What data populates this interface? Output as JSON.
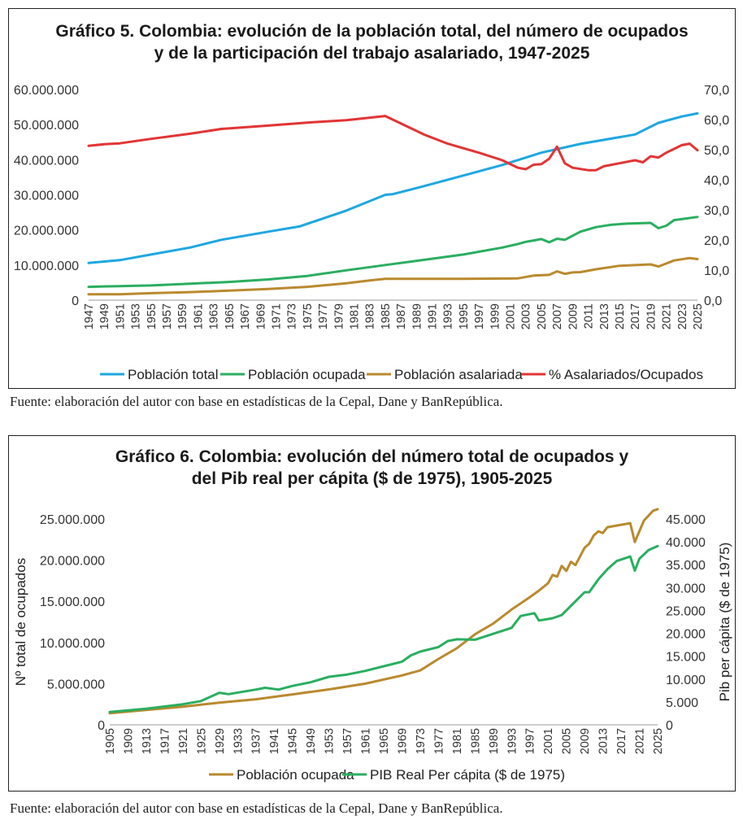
{
  "chart_data": [
    {
      "type": "line",
      "title_lines": [
        "Gráfico 5. Colombia: evolución de la población total, del número de ocupados",
        "y de la participación del trabajo asalariado, 1947-2025"
      ],
      "source": "Fuente: elaboración del autor con base en estadísticas de la Cepal, Dane y BanRepública.",
      "x_ticks": [
        "1947",
        "1949",
        "1951",
        "1953",
        "1955",
        "1957",
        "1959",
        "1961",
        "1963",
        "1965",
        "1967",
        "1969",
        "1971",
        "1973",
        "1975",
        "1977",
        "1979",
        "1981",
        "1983",
        "1985",
        "1987",
        "1989",
        "1991",
        "1993",
        "1995",
        "1997",
        "1999",
        "2001",
        "2003",
        "2005",
        "2007",
        "2009",
        "2011",
        "2013",
        "2015",
        "2017",
        "2019",
        "2021",
        "2023",
        "2025"
      ],
      "xlim": [
        1947,
        2025
      ],
      "ylim": [
        0,
        60000000
      ],
      "y_ticks": [
        "0",
        "10.000.000",
        "20.000.000",
        "30.000.000",
        "40.000.000",
        "50.000.000",
        "60.000.000"
      ],
      "y2lim": [
        0,
        70
      ],
      "y2_ticks": [
        "0,0",
        "10,0",
        "20,0",
        "30,0",
        "40,0",
        "50,0",
        "60,0",
        "70,0"
      ],
      "legend_position": "bottom",
      "series": [
        {
          "name": "Población total",
          "axis": "left",
          "color": "#1ea7e1",
          "points": [
            [
              1947,
              10600000
            ],
            [
              1951,
              11400000
            ],
            [
              1955,
              13000000
            ],
            [
              1960,
              15000000
            ],
            [
              1964,
              17200000
            ],
            [
              1970,
              19500000
            ],
            [
              1974,
              21000000
            ],
            [
              1976,
              22500000
            ],
            [
              1980,
              25500000
            ],
            [
              1985,
              30000000
            ],
            [
              1986,
              30200000
            ],
            [
              1990,
              32500000
            ],
            [
              1995,
              35500000
            ],
            [
              2000,
              38500000
            ],
            [
              2005,
              42000000
            ],
            [
              2010,
              44500000
            ],
            [
              2017,
              47200000
            ],
            [
              2020,
              50500000
            ],
            [
              2023,
              52300000
            ],
            [
              2025,
              53200000
            ]
          ]
        },
        {
          "name": "Población ocupada",
          "axis": "left",
          "color": "#2aae60",
          "points": [
            [
              1947,
              3800000
            ],
            [
              1951,
              4000000
            ],
            [
              1955,
              4200000
            ],
            [
              1960,
              4700000
            ],
            [
              1965,
              5200000
            ],
            [
              1970,
              5900000
            ],
            [
              1975,
              6900000
            ],
            [
              1980,
              8500000
            ],
            [
              1985,
              10000000
            ],
            [
              1990,
              11500000
            ],
            [
              1995,
              13000000
            ],
            [
              2000,
              15000000
            ],
            [
              2002,
              16000000
            ],
            [
              2003,
              16600000
            ],
            [
              2004,
              17000000
            ],
            [
              2005,
              17400000
            ],
            [
              2006,
              16500000
            ],
            [
              2007,
              17500000
            ],
            [
              2008,
              17200000
            ],
            [
              2010,
              19500000
            ],
            [
              2012,
              20800000
            ],
            [
              2014,
              21500000
            ],
            [
              2016,
              21800000
            ],
            [
              2019,
              22000000
            ],
            [
              2020,
              20500000
            ],
            [
              2021,
              21200000
            ],
            [
              2022,
              22800000
            ],
            [
              2025,
              23700000
            ]
          ]
        },
        {
          "name": "Población asalariada",
          "axis": "left",
          "color": "#b98a2e",
          "points": [
            [
              1947,
              1700000
            ],
            [
              1951,
              1700000
            ],
            [
              1955,
              2000000
            ],
            [
              1960,
              2300000
            ],
            [
              1965,
              2700000
            ],
            [
              1970,
              3200000
            ],
            [
              1975,
              3800000
            ],
            [
              1980,
              4800000
            ],
            [
              1983,
              5600000
            ],
            [
              1985,
              6100000
            ],
            [
              1995,
              6100000
            ],
            [
              2002,
              6200000
            ],
            [
              2004,
              7000000
            ],
            [
              2006,
              7200000
            ],
            [
              2007,
              8200000
            ],
            [
              2008,
              7500000
            ],
            [
              2009,
              7900000
            ],
            [
              2010,
              8000000
            ],
            [
              2012,
              8800000
            ],
            [
              2015,
              9800000
            ],
            [
              2019,
              10200000
            ],
            [
              2020,
              9600000
            ],
            [
              2022,
              11300000
            ],
            [
              2024,
              12000000
            ],
            [
              2025,
              11700000
            ]
          ]
        },
        {
          "name": "% Asalariados/Ocupados",
          "axis": "right",
          "color": "#e23434",
          "points": [
            [
              1947,
              51.3
            ],
            [
              1949,
              51.8
            ],
            [
              1951,
              52.1
            ],
            [
              1955,
              53.6
            ],
            [
              1960,
              55.3
            ],
            [
              1964,
              56.9
            ],
            [
              1970,
              58.0
            ],
            [
              1975,
              59.0
            ],
            [
              1980,
              59.8
            ],
            [
              1985,
              61.2
            ],
            [
              1990,
              55.0
            ],
            [
              1993,
              52.0
            ],
            [
              1995,
              50.5
            ],
            [
              1997,
              49.0
            ],
            [
              2000,
              46.5
            ],
            [
              2002,
              44.0
            ],
            [
              2003,
              43.5
            ],
            [
              2004,
              45.0
            ],
            [
              2005,
              45.2
            ],
            [
              2006,
              47.0
            ],
            [
              2007,
              51.0
            ],
            [
              2008,
              45.5
            ],
            [
              2009,
              44.0
            ],
            [
              2011,
              43.2
            ],
            [
              2012,
              43.2
            ],
            [
              2013,
              44.5
            ],
            [
              2016,
              46.0
            ],
            [
              2017,
              46.5
            ],
            [
              2018,
              45.8
            ],
            [
              2019,
              47.8
            ],
            [
              2020,
              47.4
            ],
            [
              2021,
              49.0
            ],
            [
              2023,
              51.5
            ],
            [
              2024,
              52.0
            ],
            [
              2025,
              49.8
            ]
          ]
        }
      ]
    },
    {
      "type": "line",
      "title_lines": [
        "Gráfico 6. Colombia: evolución del número total de ocupados y",
        "del Pib real per cápita ($ de 1975), 1905-2025"
      ],
      "source": "Fuente: elaboración del autor con base en estadísticas de la Cepal, Dane y BanRepública.",
      "ylabel": "Nº total de ocupados",
      "y2label": "Pib per cápita ($ de 1975)",
      "x_ticks": [
        "1905",
        "1909",
        "1913",
        "1917",
        "1921",
        "1925",
        "1929",
        "1933",
        "1937",
        "1941",
        "1945",
        "1949",
        "1953",
        "1957",
        "1961",
        "1965",
        "1969",
        "1973",
        "1977",
        "1981",
        "1985",
        "1989",
        "1993",
        "1997",
        "2001",
        "2005",
        "2009",
        "2013",
        "2017",
        "2021",
        "2025"
      ],
      "xlim": [
        1905,
        2025
      ],
      "ylim": [
        0,
        25000000
      ],
      "y_ticks": [
        "0",
        "5.000.000",
        "10.000.000",
        "15.000.000",
        "20.000.000",
        "25.000.000"
      ],
      "y2lim": [
        0,
        45000
      ],
      "y2_ticks": [
        "0",
        "5.000",
        "10.000",
        "15.000",
        "20.000",
        "25.000",
        "30.000",
        "35.000",
        "40.000",
        "45.000"
      ],
      "legend_position": "bottom",
      "series": [
        {
          "name": "Población ocupada",
          "axis": "left",
          "color": "#b98a2e",
          "points": [
            [
              1905,
              1400000
            ],
            [
              1913,
              1800000
            ],
            [
              1921,
              2200000
            ],
            [
              1929,
              2700000
            ],
            [
              1937,
              3100000
            ],
            [
              1945,
              3700000
            ],
            [
              1953,
              4300000
            ],
            [
              1961,
              5000000
            ],
            [
              1969,
              6000000
            ],
            [
              1973,
              6600000
            ],
            [
              1977,
              8000000
            ],
            [
              1981,
              9300000
            ],
            [
              1985,
              11000000
            ],
            [
              1989,
              12300000
            ],
            [
              1993,
              14000000
            ],
            [
              1997,
              15500000
            ],
            [
              1999,
              16300000
            ],
            [
              2001,
              17200000
            ],
            [
              2002,
              18200000
            ],
            [
              2003,
              18000000
            ],
            [
              2004,
              19300000
            ],
            [
              2005,
              18700000
            ],
            [
              2006,
              19800000
            ],
            [
              2007,
              19400000
            ],
            [
              2009,
              21500000
            ],
            [
              2010,
              22000000
            ],
            [
              2011,
              23000000
            ],
            [
              2012,
              23500000
            ],
            [
              2013,
              23300000
            ],
            [
              2014,
              24000000
            ],
            [
              2017,
              24300000
            ],
            [
              2019,
              24500000
            ],
            [
              2020,
              22200000
            ],
            [
              2022,
              24800000
            ],
            [
              2024,
              26000000
            ],
            [
              2025,
              26200000
            ]
          ]
        },
        {
          "name": "PIB Real Per cápita ($ de 1975)",
          "axis": "right",
          "color": "#2aae60",
          "points": [
            [
              1905,
              2800
            ],
            [
              1913,
              3500
            ],
            [
              1921,
              4500
            ],
            [
              1925,
              5200
            ],
            [
              1929,
              7000
            ],
            [
              1931,
              6700
            ],
            [
              1937,
              7700
            ],
            [
              1939,
              8100
            ],
            [
              1942,
              7700
            ],
            [
              1945,
              8500
            ],
            [
              1949,
              9300
            ],
            [
              1953,
              10500
            ],
            [
              1957,
              11000
            ],
            [
              1961,
              11800
            ],
            [
              1965,
              12800
            ],
            [
              1969,
              13800
            ],
            [
              1971,
              15200
            ],
            [
              1973,
              16000
            ],
            [
              1977,
              17000
            ],
            [
              1979,
              18300
            ],
            [
              1981,
              18700
            ],
            [
              1985,
              18600
            ],
            [
              1989,
              19900
            ],
            [
              1993,
              21200
            ],
            [
              1995,
              23800
            ],
            [
              1998,
              24400
            ],
            [
              1999,
              22800
            ],
            [
              2002,
              23300
            ],
            [
              2004,
              24000
            ],
            [
              2007,
              27000
            ],
            [
              2009,
              29000
            ],
            [
              2010,
              29000
            ],
            [
              2012,
              31800
            ],
            [
              2014,
              34000
            ],
            [
              2016,
              35800
            ],
            [
              2019,
              36800
            ],
            [
              2020,
              33700
            ],
            [
              2021,
              36300
            ],
            [
              2023,
              38200
            ],
            [
              2025,
              39100
            ]
          ]
        }
      ]
    }
  ]
}
